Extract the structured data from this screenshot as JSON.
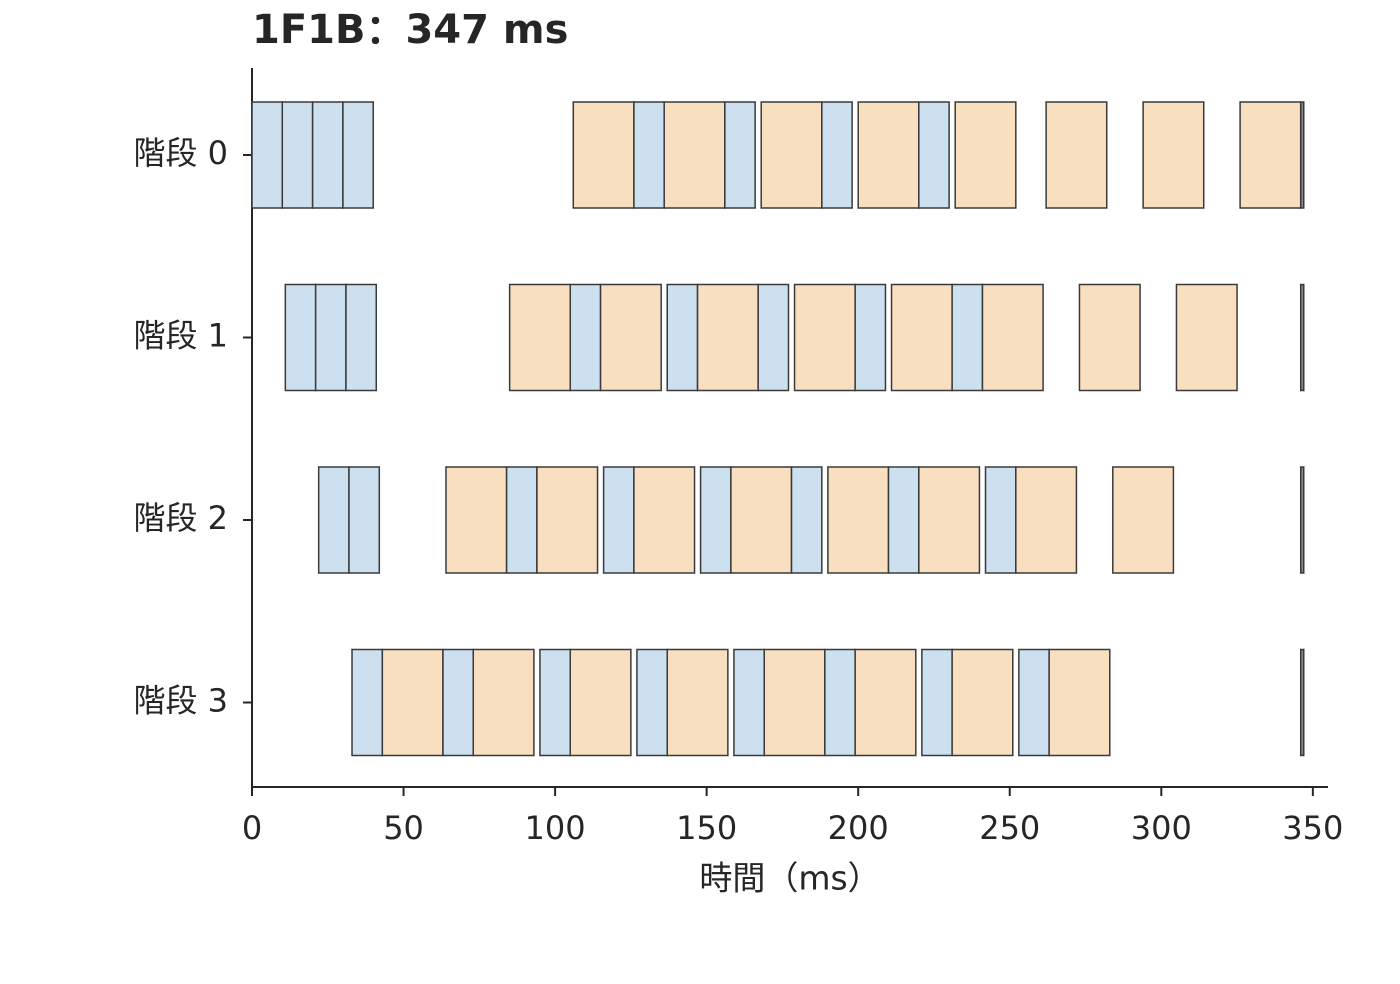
{
  "chart_data": {
    "type": "gantt",
    "title": "1F1B：347 ms",
    "x_label": "時間（ms）",
    "xlim": [
      0,
      355
    ],
    "xticks": [
      0,
      50,
      100,
      150,
      200,
      250,
      300,
      350
    ],
    "categories": [
      "階段 0",
      "階段 1",
      "階段 2",
      "階段 3"
    ],
    "stages": [
      {
        "starts": [
          0,
          10,
          20,
          30,
          106,
          126,
          136,
          156,
          168,
          188,
          200,
          220,
          232,
          262,
          294,
          326,
          346
        ],
        "ends": [
          10,
          20,
          30,
          40,
          126,
          136,
          156,
          166,
          188,
          198,
          220,
          230,
          252,
          282,
          314,
          346,
          347
        ],
        "colors": [
          "#cce0f0",
          "#cce0f0",
          "#cce0f0",
          "#cce0f0",
          "#f8dfc0",
          "#cce0f0",
          "#f8dfc0",
          "#cce0f0",
          "#f8dfc0",
          "#cce0f0",
          "#f8dfc0",
          "#cce0f0",
          "#f8dfc0",
          "#f8dfc0",
          "#f8dfc0",
          "#f8dfc0",
          "#888888"
        ]
      },
      {
        "starts": [
          11,
          21,
          31,
          85,
          105,
          115,
          137,
          147,
          167,
          179,
          199,
          211,
          231,
          241,
          273,
          305,
          346
        ],
        "ends": [
          21,
          31,
          41,
          105,
          115,
          135,
          147,
          167,
          177,
          199,
          209,
          231,
          241,
          261,
          293,
          325,
          347
        ],
        "colors": [
          "#cce0f0",
          "#cce0f0",
          "#cce0f0",
          "#f8dfc0",
          "#cce0f0",
          "#f8dfc0",
          "#cce0f0",
          "#f8dfc0",
          "#cce0f0",
          "#f8dfc0",
          "#cce0f0",
          "#f8dfc0",
          "#cce0f0",
          "#f8dfc0",
          "#f8dfc0",
          "#f8dfc0",
          "#888888"
        ]
      },
      {
        "starts": [
          22,
          32,
          64,
          84,
          94,
          116,
          126,
          148,
          158,
          178,
          190,
          210,
          220,
          242,
          252,
          284,
          346
        ],
        "ends": [
          32,
          42,
          84,
          94,
          114,
          126,
          146,
          158,
          178,
          188,
          210,
          220,
          240,
          252,
          272,
          304,
          347
        ],
        "colors": [
          "#cce0f0",
          "#cce0f0",
          "#f8dfc0",
          "#cce0f0",
          "#f8dfc0",
          "#cce0f0",
          "#f8dfc0",
          "#cce0f0",
          "#f8dfc0",
          "#cce0f0",
          "#f8dfc0",
          "#cce0f0",
          "#f8dfc0",
          "#cce0f0",
          "#f8dfc0",
          "#f8dfc0",
          "#888888"
        ]
      },
      {
        "starts": [
          33,
          43,
          63,
          73,
          95,
          105,
          127,
          137,
          159,
          169,
          189,
          199,
          221,
          231,
          253,
          263,
          346
        ],
        "ends": [
          43,
          63,
          73,
          93,
          105,
          125,
          137,
          157,
          169,
          189,
          199,
          219,
          231,
          251,
          263,
          283,
          347
        ],
        "colors": [
          "#cce0f0",
          "#f8dfc0",
          "#cce0f0",
          "#f8dfc0",
          "#cce0f0",
          "#f8dfc0",
          "#cce0f0",
          "#f8dfc0",
          "#cce0f0",
          "#f8dfc0",
          "#cce0f0",
          "#f8dfc0",
          "#cce0f0",
          "#f8dfc0",
          "#cce0f0",
          "#f8dfc0",
          "#888888"
        ]
      }
    ]
  }
}
